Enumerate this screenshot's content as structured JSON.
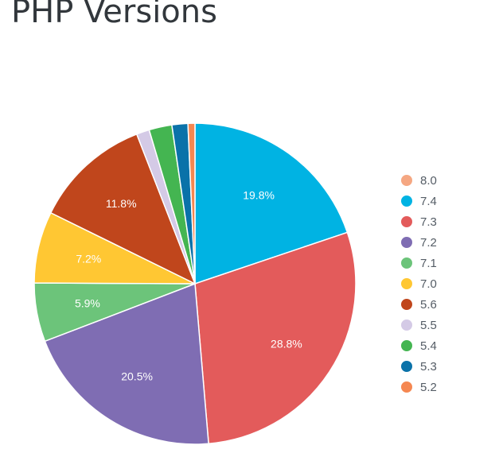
{
  "page": {
    "title": "PHP Versions"
  },
  "chart_data": {
    "type": "pie",
    "title": "PHP Versions",
    "start_angle_deg": 0,
    "direction": "clockwise",
    "legend_position": "right",
    "slices": [
      {
        "label": "7.4",
        "value": 19.8,
        "color": "#00b3e3",
        "data_label": "19.8%"
      },
      {
        "label": "7.3",
        "value": 28.8,
        "color": "#e35b5b",
        "data_label": "28.8%"
      },
      {
        "label": "7.2",
        "value": 20.5,
        "color": "#7f6db3",
        "data_label": "20.5%"
      },
      {
        "label": "7.1",
        "value": 5.9,
        "color": "#6cc47a",
        "data_label": "5.9%"
      },
      {
        "label": "7.0",
        "value": 7.2,
        "color": "#ffc733",
        "data_label": "7.2%"
      },
      {
        "label": "5.6",
        "value": 11.8,
        "color": "#c0461c",
        "data_label": "11.8%"
      },
      {
        "label": "5.5",
        "value": 1.3,
        "color": "#d4cae6",
        "data_label": ""
      },
      {
        "label": "5.4",
        "value": 2.3,
        "color": "#44b551",
        "data_label": ""
      },
      {
        "label": "5.3",
        "value": 1.6,
        "color": "#0a72a9",
        "data_label": ""
      },
      {
        "label": "5.2",
        "value": 0.7,
        "color": "#f58751",
        "data_label": ""
      }
    ],
    "legend": [
      {
        "label": "8.0",
        "color": "#f5a782"
      },
      {
        "label": "7.4",
        "color": "#00b3e3"
      },
      {
        "label": "7.3",
        "color": "#e35b5b"
      },
      {
        "label": "7.2",
        "color": "#7f6db3"
      },
      {
        "label": "7.1",
        "color": "#6cc47a"
      },
      {
        "label": "7.0",
        "color": "#ffc733"
      },
      {
        "label": "5.6",
        "color": "#c0461c"
      },
      {
        "label": "5.5",
        "color": "#d4cae6"
      },
      {
        "label": "5.4",
        "color": "#44b551"
      },
      {
        "label": "5.3",
        "color": "#0a72a9"
      },
      {
        "label": "5.2",
        "color": "#f58751"
      }
    ]
  }
}
